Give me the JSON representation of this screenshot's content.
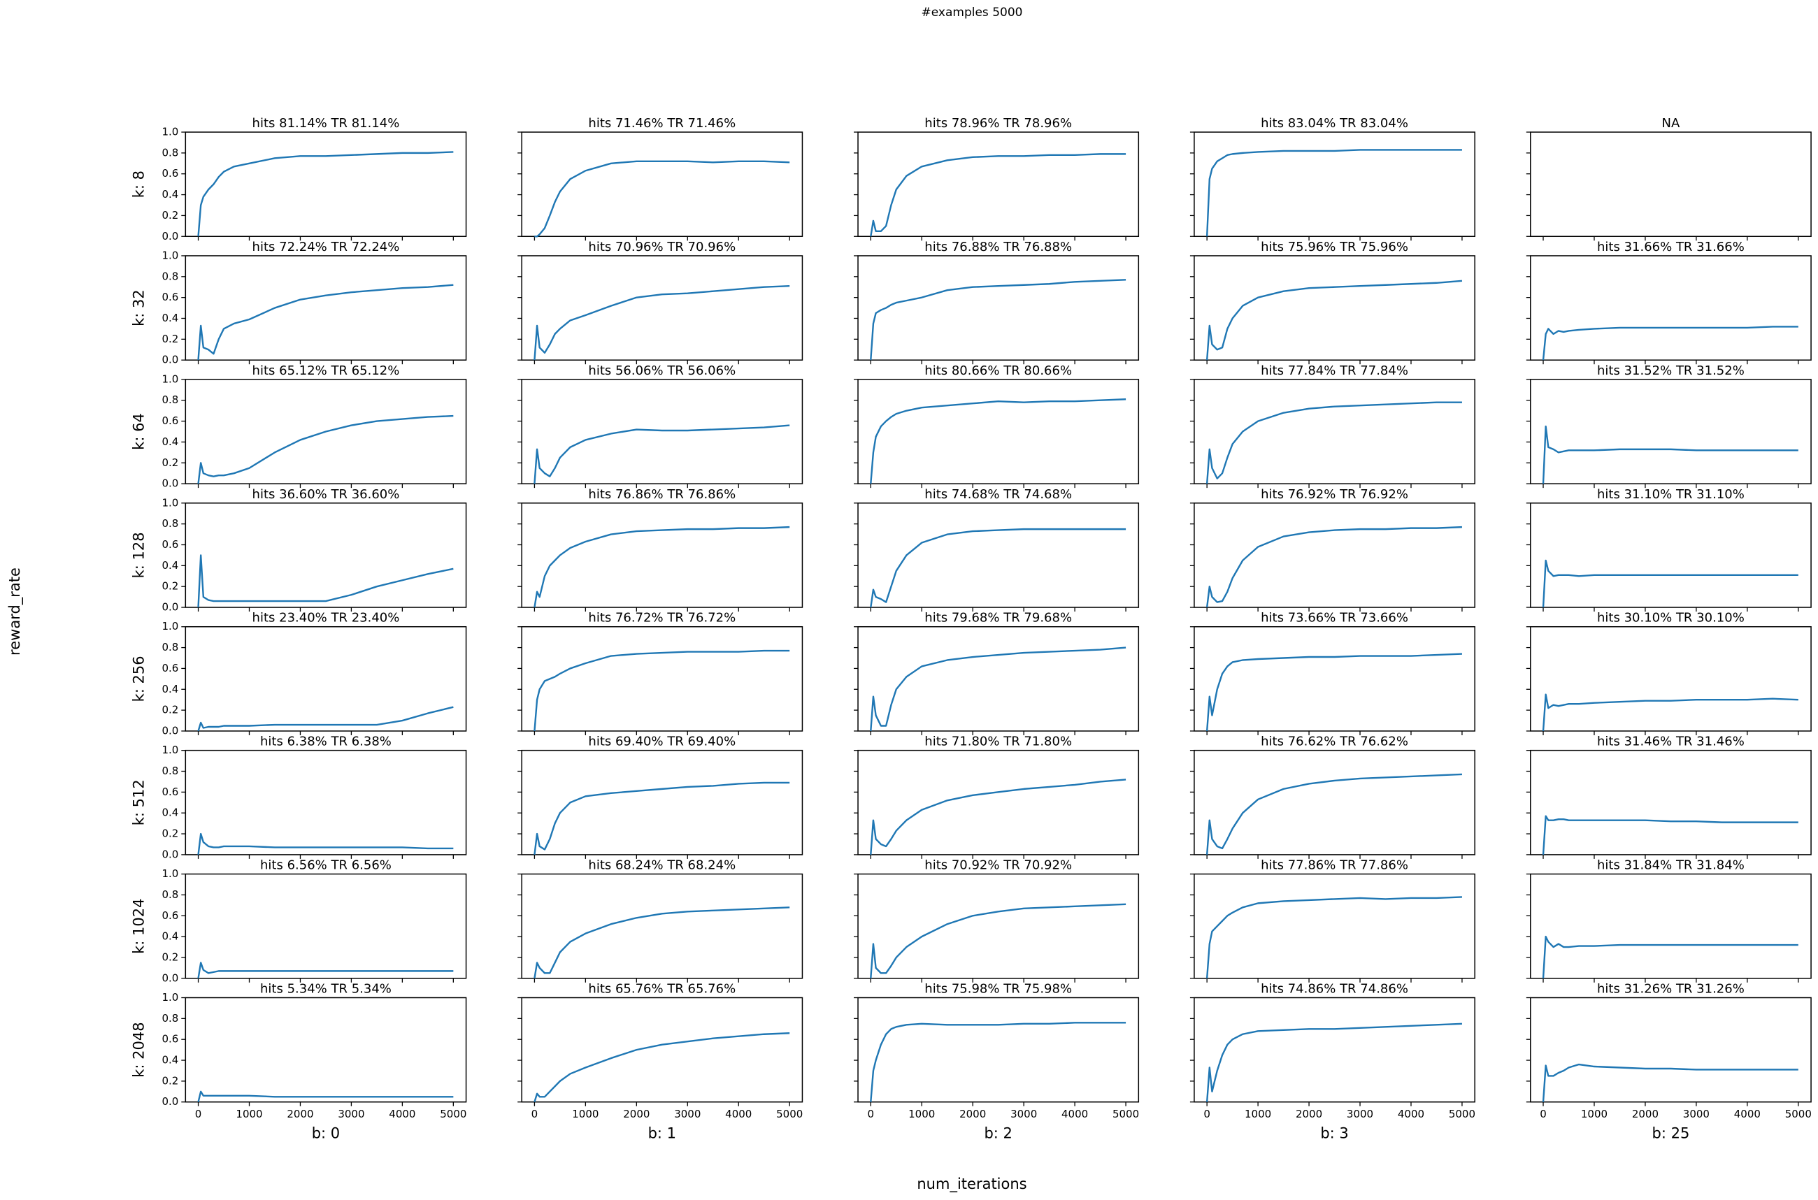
{
  "chart_data": {
    "type": "line",
    "title": "#examples 5000",
    "xlabel": "num_iterations",
    "ylabel": "reward_rate",
    "color": "#1f77b4",
    "xlim": [
      -250,
      5250
    ],
    "xticks": [
      0,
      1000,
      2000,
      3000,
      4000,
      5000
    ],
    "ylim": [
      0,
      1
    ],
    "yticks": [
      {
        "value": 0,
        "label": "0.0"
      },
      {
        "value": 0.2,
        "label": "0.2"
      },
      {
        "value": 0.4,
        "label": "0.4"
      },
      {
        "value": 0.6,
        "label": "0.6"
      },
      {
        "value": 0.8,
        "label": "0.8"
      },
      {
        "value": 1,
        "label": "1.0"
      }
    ],
    "row_labels": [
      "k: 8",
      "k: 32",
      "k: 64",
      "k: 128",
      "k: 256",
      "k: 512",
      "k: 1024",
      "k: 2048"
    ],
    "col_labels": [
      "b: 0",
      "b: 1",
      "b: 2",
      "b: 3",
      "b: 25"
    ],
    "x": [
      0,
      50,
      100,
      200,
      300,
      400,
      500,
      700,
      1000,
      1500,
      2000,
      2500,
      3000,
      3500,
      4000,
      4500,
      5000
    ],
    "panels": [
      {
        "title": "hits 81.14% TR 81.14%",
        "values": [
          0,
          0.3,
          0.38,
          0.45,
          0.5,
          0.57,
          0.62,
          0.67,
          0.7,
          0.75,
          0.77,
          0.77,
          0.78,
          0.79,
          0.8,
          0.8,
          0.81
        ]
      },
      {
        "title": "hits 71.46% TR 71.46%",
        "values": [
          0,
          0,
          0.02,
          0.08,
          0.2,
          0.33,
          0.43,
          0.55,
          0.63,
          0.7,
          0.72,
          0.72,
          0.72,
          0.71,
          0.72,
          0.72,
          0.71
        ]
      },
      {
        "title": "hits 78.96% TR 78.96%",
        "values": [
          0,
          0.15,
          0.05,
          0.05,
          0.1,
          0.3,
          0.45,
          0.58,
          0.67,
          0.73,
          0.76,
          0.77,
          0.77,
          0.78,
          0.78,
          0.79,
          0.79
        ]
      },
      {
        "title": "hits 83.04% TR 83.04%",
        "values": [
          0,
          0.55,
          0.65,
          0.72,
          0.75,
          0.78,
          0.79,
          0.8,
          0.81,
          0.82,
          0.82,
          0.82,
          0.83,
          0.83,
          0.83,
          0.83,
          0.83
        ]
      },
      {
        "title": "NA",
        "values": [
          null,
          null,
          null,
          null,
          null,
          null,
          null,
          null,
          null,
          null,
          null,
          null,
          null,
          null,
          null,
          null,
          null
        ]
      },
      {
        "title": "hits 72.24% TR 72.24%",
        "values": [
          0,
          0.33,
          0.12,
          0.1,
          0.06,
          0.2,
          0.3,
          0.35,
          0.39,
          0.5,
          0.58,
          0.62,
          0.65,
          0.67,
          0.69,
          0.7,
          0.72
        ]
      },
      {
        "title": "hits 70.96% TR 70.96%",
        "values": [
          0,
          0.33,
          0.12,
          0.07,
          0.15,
          0.25,
          0.3,
          0.38,
          0.43,
          0.52,
          0.6,
          0.63,
          0.64,
          0.66,
          0.68,
          0.7,
          0.71
        ]
      },
      {
        "title": "hits 76.88% TR 76.88%",
        "values": [
          0,
          0.35,
          0.45,
          0.48,
          0.5,
          0.53,
          0.55,
          0.57,
          0.6,
          0.67,
          0.7,
          0.71,
          0.72,
          0.73,
          0.75,
          0.76,
          0.77
        ]
      },
      {
        "title": "hits 75.96% TR 75.96%",
        "values": [
          0,
          0.33,
          0.15,
          0.1,
          0.12,
          0.3,
          0.4,
          0.52,
          0.6,
          0.66,
          0.69,
          0.7,
          0.71,
          0.72,
          0.73,
          0.74,
          0.76
        ]
      },
      {
        "title": "hits 31.66% TR 31.66%",
        "values": [
          0,
          0.25,
          0.3,
          0.25,
          0.28,
          0.27,
          0.28,
          0.29,
          0.3,
          0.31,
          0.31,
          0.31,
          0.31,
          0.31,
          0.31,
          0.32,
          0.32
        ]
      },
      {
        "title": "hits 65.12% TR 65.12%",
        "values": [
          0,
          0.2,
          0.1,
          0.08,
          0.07,
          0.08,
          0.08,
          0.1,
          0.15,
          0.3,
          0.42,
          0.5,
          0.56,
          0.6,
          0.62,
          0.64,
          0.65
        ]
      },
      {
        "title": "hits 56.06% TR 56.06%",
        "values": [
          0,
          0.33,
          0.15,
          0.1,
          0.07,
          0.15,
          0.25,
          0.35,
          0.42,
          0.48,
          0.52,
          0.51,
          0.51,
          0.52,
          0.53,
          0.54,
          0.56
        ]
      },
      {
        "title": "hits 80.66% TR 80.66%",
        "values": [
          0,
          0.3,
          0.45,
          0.55,
          0.6,
          0.64,
          0.67,
          0.7,
          0.73,
          0.75,
          0.77,
          0.79,
          0.78,
          0.79,
          0.79,
          0.8,
          0.81
        ]
      },
      {
        "title": "hits 77.84% TR 77.84%",
        "values": [
          0,
          0.33,
          0.15,
          0.05,
          0.1,
          0.25,
          0.38,
          0.5,
          0.6,
          0.68,
          0.72,
          0.74,
          0.75,
          0.76,
          0.77,
          0.78,
          0.78
        ]
      },
      {
        "title": "hits 31.52% TR 31.52%",
        "values": [
          0,
          0.55,
          0.35,
          0.33,
          0.3,
          0.31,
          0.32,
          0.32,
          0.32,
          0.33,
          0.33,
          0.33,
          0.32,
          0.32,
          0.32,
          0.32,
          0.32
        ]
      },
      {
        "title": "hits 36.60% TR 36.60%",
        "values": [
          0,
          0.5,
          0.1,
          0.07,
          0.06,
          0.06,
          0.06,
          0.06,
          0.06,
          0.06,
          0.06,
          0.06,
          0.12,
          0.2,
          0.26,
          0.32,
          0.37
        ]
      },
      {
        "title": "hits 76.86% TR 76.86%",
        "values": [
          0,
          0.15,
          0.1,
          0.3,
          0.4,
          0.45,
          0.5,
          0.57,
          0.63,
          0.7,
          0.73,
          0.74,
          0.75,
          0.75,
          0.76,
          0.76,
          0.77
        ]
      },
      {
        "title": "hits 74.68% TR 74.68%",
        "values": [
          0,
          0.17,
          0.1,
          0.08,
          0.05,
          0.2,
          0.35,
          0.5,
          0.62,
          0.7,
          0.73,
          0.74,
          0.75,
          0.75,
          0.75,
          0.75,
          0.75
        ]
      },
      {
        "title": "hits 76.92% TR 76.92%",
        "values": [
          0,
          0.2,
          0.1,
          0.05,
          0.06,
          0.15,
          0.28,
          0.45,
          0.58,
          0.68,
          0.72,
          0.74,
          0.75,
          0.75,
          0.76,
          0.76,
          0.77
        ]
      },
      {
        "title": "hits 31.10% TR 31.10%",
        "values": [
          0,
          0.45,
          0.35,
          0.3,
          0.31,
          0.31,
          0.31,
          0.3,
          0.31,
          0.31,
          0.31,
          0.31,
          0.31,
          0.31,
          0.31,
          0.31,
          0.31
        ]
      },
      {
        "title": "hits 23.40% TR 23.40%",
        "values": [
          0,
          0.08,
          0.03,
          0.04,
          0.04,
          0.04,
          0.05,
          0.05,
          0.05,
          0.06,
          0.06,
          0.06,
          0.06,
          0.06,
          0.1,
          0.17,
          0.23
        ]
      },
      {
        "title": "hits 76.72% TR 76.72%",
        "values": [
          0,
          0.3,
          0.4,
          0.48,
          0.5,
          0.52,
          0.55,
          0.6,
          0.65,
          0.72,
          0.74,
          0.75,
          0.76,
          0.76,
          0.76,
          0.77,
          0.77
        ]
      },
      {
        "title": "hits 79.68% TR 79.68%",
        "values": [
          0,
          0.33,
          0.15,
          0.05,
          0.05,
          0.25,
          0.4,
          0.52,
          0.62,
          0.68,
          0.71,
          0.73,
          0.75,
          0.76,
          0.77,
          0.78,
          0.8
        ]
      },
      {
        "title": "hits 73.66% TR 73.66%",
        "values": [
          0,
          0.33,
          0.15,
          0.4,
          0.55,
          0.62,
          0.66,
          0.68,
          0.69,
          0.7,
          0.71,
          0.71,
          0.72,
          0.72,
          0.72,
          0.73,
          0.74
        ]
      },
      {
        "title": "hits 30.10% TR 30.10%",
        "values": [
          0,
          0.35,
          0.22,
          0.25,
          0.24,
          0.25,
          0.26,
          0.26,
          0.27,
          0.28,
          0.29,
          0.29,
          0.3,
          0.3,
          0.3,
          0.31,
          0.3
        ]
      },
      {
        "title": "hits 6.38% TR 6.38%",
        "values": [
          0,
          0.2,
          0.12,
          0.08,
          0.07,
          0.07,
          0.08,
          0.08,
          0.08,
          0.07,
          0.07,
          0.07,
          0.07,
          0.07,
          0.07,
          0.06,
          0.06
        ]
      },
      {
        "title": "hits 69.40% TR 69.40%",
        "values": [
          0,
          0.2,
          0.08,
          0.05,
          0.15,
          0.3,
          0.4,
          0.5,
          0.56,
          0.59,
          0.61,
          0.63,
          0.65,
          0.66,
          0.68,
          0.69,
          0.69
        ]
      },
      {
        "title": "hits 71.80% TR 71.80%",
        "values": [
          0,
          0.33,
          0.15,
          0.1,
          0.08,
          0.15,
          0.23,
          0.33,
          0.43,
          0.52,
          0.57,
          0.6,
          0.63,
          0.65,
          0.67,
          0.7,
          0.72
        ]
      },
      {
        "title": "hits 76.62% TR 76.62%",
        "values": [
          0,
          0.33,
          0.15,
          0.08,
          0.06,
          0.15,
          0.25,
          0.4,
          0.53,
          0.63,
          0.68,
          0.71,
          0.73,
          0.74,
          0.75,
          0.76,
          0.77
        ]
      },
      {
        "title": "hits 31.46% TR 31.46%",
        "values": [
          0,
          0.37,
          0.33,
          0.33,
          0.34,
          0.34,
          0.33,
          0.33,
          0.33,
          0.33,
          0.33,
          0.32,
          0.32,
          0.31,
          0.31,
          0.31,
          0.31
        ]
      },
      {
        "title": "hits 6.56% TR 6.56%",
        "values": [
          0,
          0.15,
          0.08,
          0.05,
          0.06,
          0.07,
          0.07,
          0.07,
          0.07,
          0.07,
          0.07,
          0.07,
          0.07,
          0.07,
          0.07,
          0.07,
          0.07
        ]
      },
      {
        "title": "hits 68.24% TR 68.24%",
        "values": [
          0,
          0.15,
          0.1,
          0.05,
          0.05,
          0.15,
          0.25,
          0.35,
          0.43,
          0.52,
          0.58,
          0.62,
          0.64,
          0.65,
          0.66,
          0.67,
          0.68
        ]
      },
      {
        "title": "hits 70.92% TR 70.92%",
        "values": [
          0,
          0.33,
          0.1,
          0.05,
          0.05,
          0.12,
          0.2,
          0.3,
          0.4,
          0.52,
          0.6,
          0.64,
          0.67,
          0.68,
          0.69,
          0.7,
          0.71
        ]
      },
      {
        "title": "hits 77.86% TR 77.86%",
        "values": [
          0,
          0.33,
          0.45,
          0.5,
          0.55,
          0.6,
          0.63,
          0.68,
          0.72,
          0.74,
          0.75,
          0.76,
          0.77,
          0.76,
          0.77,
          0.77,
          0.78
        ]
      },
      {
        "title": "hits 31.84% TR 31.84%",
        "values": [
          0,
          0.4,
          0.35,
          0.3,
          0.33,
          0.3,
          0.3,
          0.31,
          0.31,
          0.32,
          0.32,
          0.32,
          0.32,
          0.32,
          0.32,
          0.32,
          0.32
        ]
      },
      {
        "title": "hits 5.34% TR 5.34%",
        "values": [
          0,
          0.1,
          0.06,
          0.06,
          0.06,
          0.06,
          0.06,
          0.06,
          0.06,
          0.05,
          0.05,
          0.05,
          0.05,
          0.05,
          0.05,
          0.05,
          0.05
        ]
      },
      {
        "title": "hits 65.76% TR 65.76%",
        "values": [
          0,
          0.08,
          0.05,
          0.05,
          0.1,
          0.15,
          0.2,
          0.27,
          0.33,
          0.42,
          0.5,
          0.55,
          0.58,
          0.61,
          0.63,
          0.65,
          0.66
        ]
      },
      {
        "title": "hits 75.98% TR 75.98%",
        "values": [
          0,
          0.3,
          0.4,
          0.55,
          0.65,
          0.7,
          0.72,
          0.74,
          0.75,
          0.74,
          0.74,
          0.74,
          0.75,
          0.75,
          0.76,
          0.76,
          0.76
        ]
      },
      {
        "title": "hits 74.86% TR 74.86%",
        "values": [
          0,
          0.33,
          0.1,
          0.3,
          0.45,
          0.55,
          0.6,
          0.65,
          0.68,
          0.69,
          0.7,
          0.7,
          0.71,
          0.72,
          0.73,
          0.74,
          0.75
        ]
      },
      {
        "title": "hits 31.26% TR 31.26%",
        "values": [
          0,
          0.35,
          0.25,
          0.25,
          0.28,
          0.3,
          0.33,
          0.36,
          0.34,
          0.33,
          0.32,
          0.32,
          0.31,
          0.31,
          0.31,
          0.31,
          0.31
        ]
      }
    ]
  }
}
